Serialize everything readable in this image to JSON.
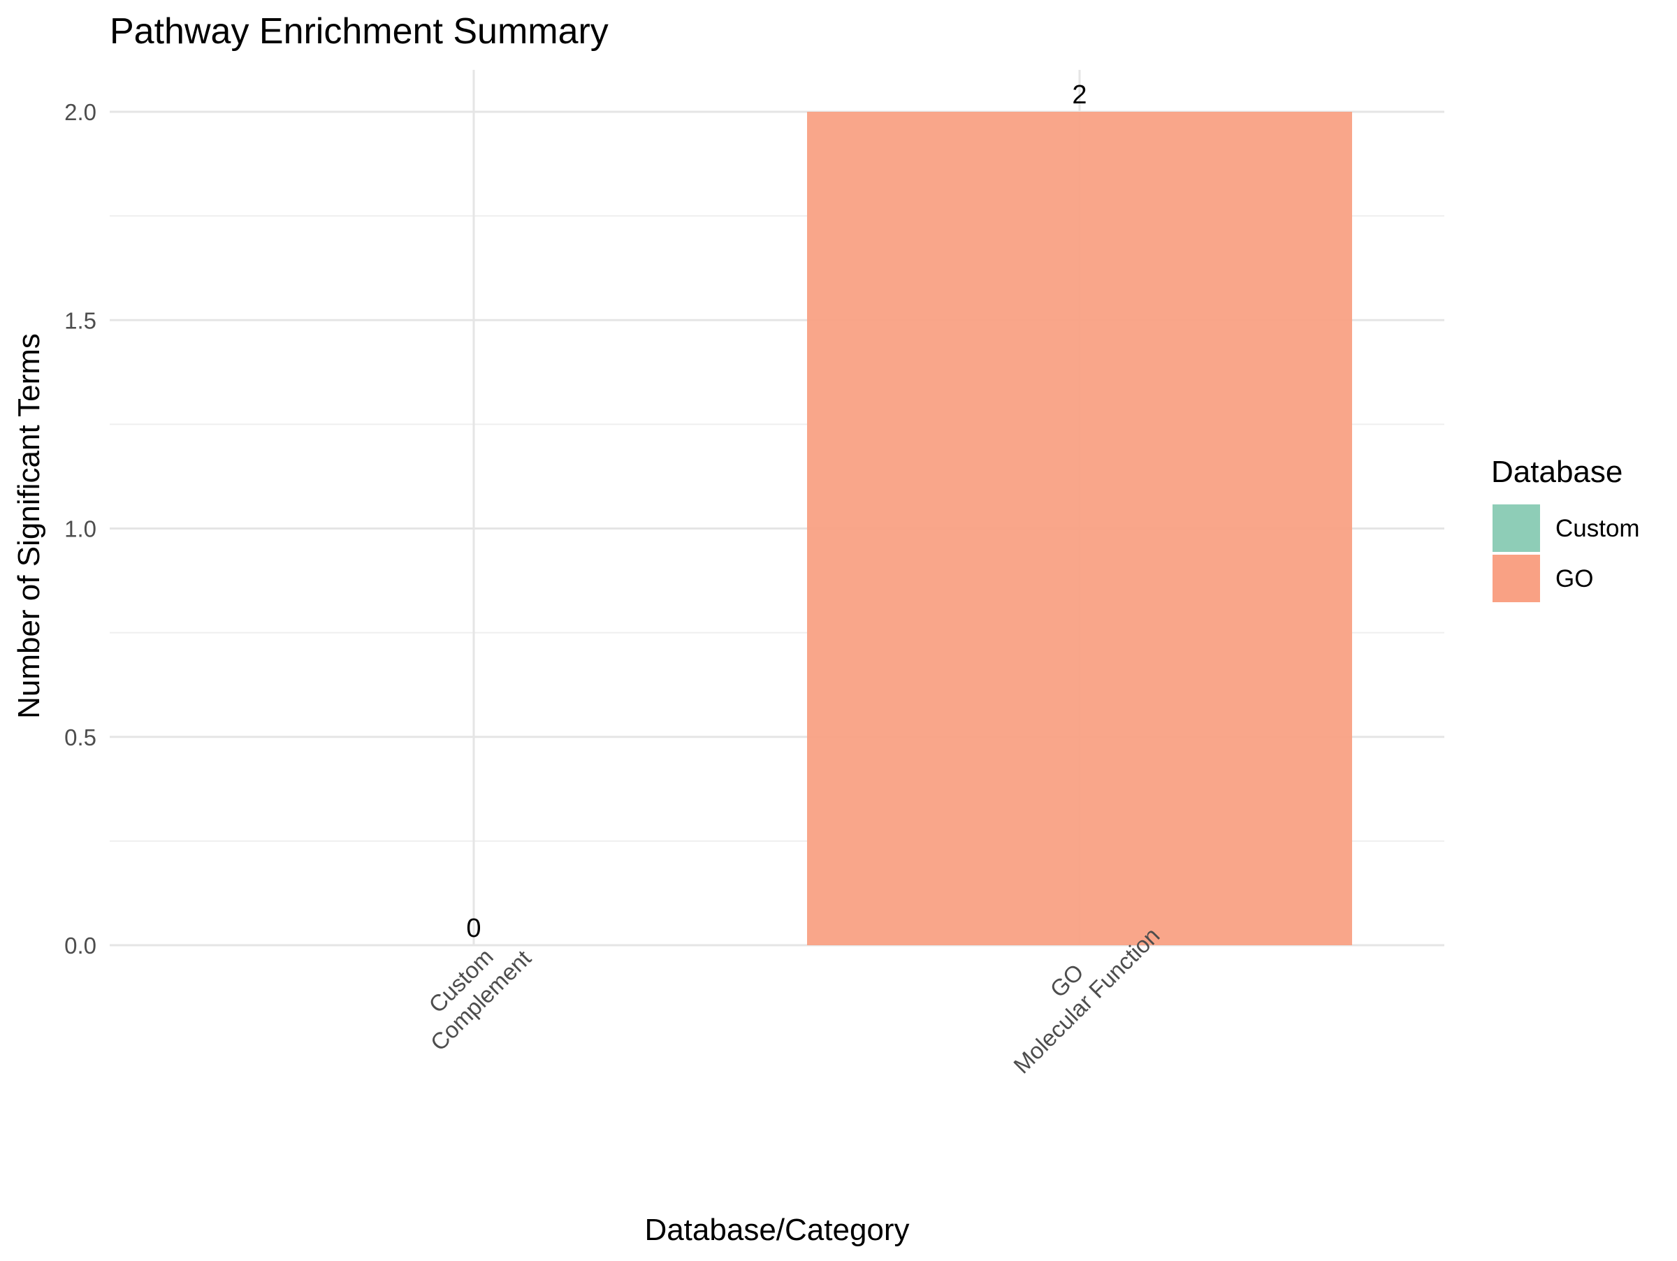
{
  "chart_data": {
    "type": "bar",
    "title": "Pathway Enrichment Summary",
    "xlabel": "Database/Category",
    "ylabel": "Number of Significant Terms",
    "categories": [
      {
        "lines": [
          "Custom",
          "Complement"
        ],
        "database": "Custom"
      },
      {
        "lines": [
          "GO",
          "Molecular Function"
        ],
        "database": "GO"
      }
    ],
    "values": [
      0,
      2
    ],
    "data_labels": [
      "0",
      "2"
    ],
    "ylim": [
      0,
      2
    ],
    "yticks": [
      0.0,
      0.5,
      1.0,
      1.5,
      2.0
    ],
    "ytick_labels": [
      "0.0",
      "0.5",
      "1.0",
      "1.5",
      "2.0"
    ],
    "grid": true,
    "x_tick_rotation": -45,
    "legend": {
      "title": "Database",
      "position": "right",
      "entries": [
        {
          "label": "Custom",
          "color": "#8ecdb7"
        },
        {
          "label": "GO",
          "color": "#f9a184"
        }
      ]
    }
  }
}
